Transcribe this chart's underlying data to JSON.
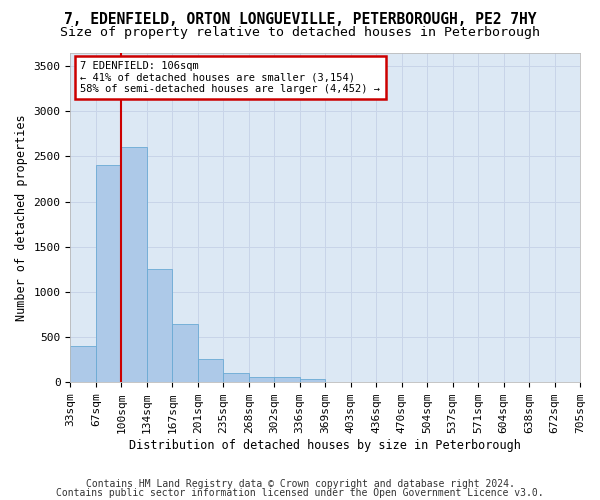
{
  "title": "7, EDENFIELD, ORTON LONGUEVILLE, PETERBOROUGH, PE2 7HY",
  "subtitle": "Size of property relative to detached houses in Peterborough",
  "xlabel": "Distribution of detached houses by size in Peterborough",
  "ylabel": "Number of detached properties",
  "footnote1": "Contains HM Land Registry data © Crown copyright and database right 2024.",
  "footnote2": "Contains public sector information licensed under the Open Government Licence v3.0.",
  "bin_labels": [
    "33sqm",
    "67sqm",
    "100sqm",
    "134sqm",
    "167sqm",
    "201sqm",
    "235sqm",
    "268sqm",
    "302sqm",
    "336sqm",
    "369sqm",
    "403sqm",
    "436sqm",
    "470sqm",
    "504sqm",
    "537sqm",
    "571sqm",
    "604sqm",
    "638sqm",
    "672sqm",
    "705sqm"
  ],
  "bar_values": [
    400,
    2400,
    2600,
    1250,
    650,
    260,
    100,
    60,
    60,
    40,
    5,
    0,
    0,
    0,
    0,
    0,
    0,
    0,
    0,
    0
  ],
  "bar_color": "#adc9e8",
  "bar_edge_color": "#6aaad4",
  "annotation_line1": "7 EDENFIELD: 106sqm",
  "annotation_line2": "← 41% of detached houses are smaller (3,154)",
  "annotation_line3": "58% of semi-detached houses are larger (4,452) →",
  "annotation_box_facecolor": "#ffffff",
  "annotation_box_edgecolor": "#cc0000",
  "vline_color": "#cc0000",
  "ylim_max": 3650,
  "yticks": [
    0,
    500,
    1000,
    1500,
    2000,
    2500,
    3000,
    3500
  ],
  "grid_color": "#c8d4e8",
  "background_color": "#dce8f4",
  "title_fontsize": 10.5,
  "subtitle_fontsize": 9.5,
  "axis_label_fontsize": 8.5,
  "tick_fontsize": 8,
  "annotation_fontsize": 7.5,
  "footnote_fontsize": 7
}
